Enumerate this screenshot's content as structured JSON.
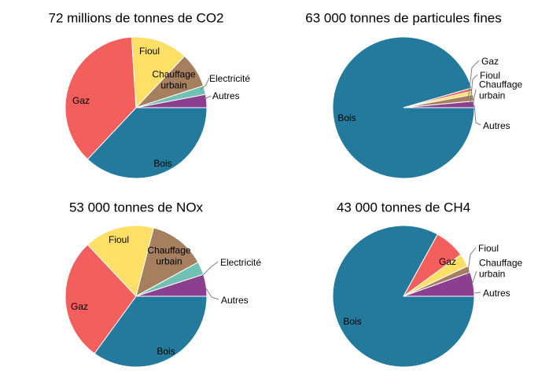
{
  "colors": {
    "Bois": "#247a9c",
    "Gaz": "#f25f5c",
    "Fioul": "#ffe066",
    "Chauffage urbain": "#a67f5f",
    "Electricité": "#70c1b3",
    "Autres": "#8c3f8f"
  },
  "chart_data": [
    {
      "type": "pie",
      "title": "72 millions de tonnes de CO2",
      "slices": [
        {
          "label": "Bois",
          "value": 37
        },
        {
          "label": "Gaz",
          "value": 37
        },
        {
          "label": "Fioul",
          "value": 13
        },
        {
          "label": "Chauffage urbain",
          "value": 8
        },
        {
          "label": "Electricité",
          "value": 2
        },
        {
          "label": "Autres",
          "value": 3
        }
      ]
    },
    {
      "type": "pie",
      "title": "63 000 tonnes de particules fines",
      "slices": [
        {
          "label": "Bois",
          "value": 96
        },
        {
          "label": "Gaz",
          "value": 0.7
        },
        {
          "label": "Fioul",
          "value": 0.8
        },
        {
          "label": "Chauffage urbain",
          "value": 1.5
        },
        {
          "label": "Autres",
          "value": 1.5
        }
      ]
    },
    {
      "type": "pie",
      "title": "53 000 tonnes de NOx",
      "slices": [
        {
          "label": "Bois",
          "value": 35
        },
        {
          "label": "Gaz",
          "value": 28
        },
        {
          "label": "Fioul",
          "value": 16
        },
        {
          "label": "Chauffage urbain",
          "value": 13
        },
        {
          "label": "Electricité",
          "value": 3
        },
        {
          "label": "Autres",
          "value": 5
        }
      ]
    },
    {
      "type": "pie",
      "title": "43 000 tonnes de CH4",
      "slices": [
        {
          "label": "Bois",
          "value": 83
        },
        {
          "label": "Gaz",
          "value": 7
        },
        {
          "label": "Fioul",
          "value": 3
        },
        {
          "label": "Chauffage urbain",
          "value": 1.5
        },
        {
          "label": "Autres",
          "value": 5.5
        }
      ]
    }
  ]
}
